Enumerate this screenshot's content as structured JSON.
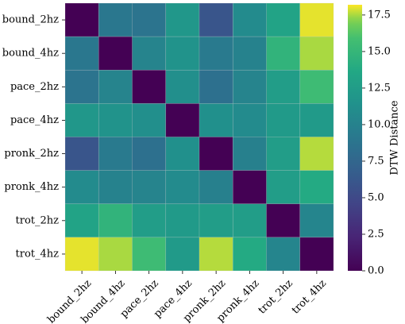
{
  "chart_data": {
    "type": "heatmap",
    "title": "",
    "xlabel": "",
    "ylabel": "",
    "x_categories": [
      "bound_2hz",
      "bound_4hz",
      "pace_2hz",
      "pace_4hz",
      "pronk_2hz",
      "pronk_4hz",
      "trot_2hz",
      "trot_4hz"
    ],
    "y_categories": [
      "bound_2hz",
      "bound_4hz",
      "pace_2hz",
      "pace_4hz",
      "pronk_2hz",
      "pronk_4hz",
      "trot_2hz",
      "trot_4hz"
    ],
    "values": [
      [
        0.0,
        9.0,
        8.7,
        12.0,
        6.0,
        10.8,
        13.2,
        18.0
      ],
      [
        9.0,
        0.0,
        10.2,
        11.6,
        9.3,
        10.0,
        14.7,
        17.5
      ],
      [
        8.7,
        10.2,
        0.0,
        11.2,
        8.4,
        10.2,
        12.6,
        15.5
      ],
      [
        12.0,
        11.6,
        11.2,
        0.0,
        11.3,
        10.8,
        12.3,
        12.3
      ],
      [
        6.0,
        9.3,
        8.4,
        11.3,
        0.0,
        9.8,
        12.6,
        17.6
      ],
      [
        10.8,
        10.0,
        10.2,
        10.8,
        9.8,
        0.0,
        12.6,
        13.8
      ],
      [
        13.2,
        14.7,
        12.6,
        12.3,
        12.6,
        12.6,
        0.0,
        10.3
      ],
      [
        18.0,
        17.5,
        15.5,
        12.3,
        17.6,
        13.8,
        10.3,
        0.0
      ]
    ],
    "colormap": "viridis",
    "vmin": 0.0,
    "vmax": 18.2,
    "colorbar": {
      "label": "DTW Distance",
      "ticks": [
        0.0,
        2.5,
        5.0,
        7.5,
        10.0,
        12.5,
        15.0,
        17.5
      ],
      "tick_labels": [
        "0.0",
        "2.5",
        "5.0",
        "7.5",
        "10.0",
        "12.5",
        "15.0",
        "17.5"
      ]
    },
    "grid": true
  }
}
